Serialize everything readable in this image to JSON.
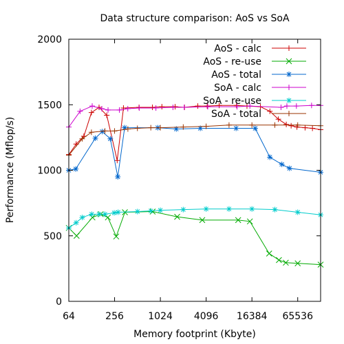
{
  "chart_data": {
    "type": "line",
    "title": "Data structure comparison: AoS vs SoA",
    "xlabel": "Memory footprint (Kbyte)",
    "ylabel": "Performance (Mflop/s)",
    "xscale": "log2",
    "xlim": [
      64,
      131072
    ],
    "ylim": [
      0,
      2000
    ],
    "xticks": [
      64,
      256,
      1024,
      4096,
      16384,
      65536
    ],
    "xtick_labels": [
      "64",
      "256",
      "1024",
      "4096",
      "16384",
      "65536"
    ],
    "yticks": [
      0,
      500,
      1000,
      1500,
      2000
    ],
    "ytick_labels": [
      "0",
      "500",
      "1000",
      "1500",
      "2000"
    ],
    "grid": false,
    "legend_position": "top-right",
    "series": [
      {
        "name": "AoS - calc",
        "color": "#cc0000",
        "marker": "plus",
        "x": [
          64,
          80,
          101,
          127,
          160,
          202,
          277,
          335,
          537,
          805,
          1072,
          1600,
          2126,
          3180,
          4230,
          6080,
          10300,
          14100,
          21170,
          28200,
          36480,
          46350,
          53700,
          64000,
          81900,
          102350,
          131072
        ],
        "y": [
          1120,
          1200,
          1260,
          1440,
          1480,
          1420,
          1075,
          1475,
          1480,
          1480,
          1485,
          1485,
          1480,
          1490,
          1490,
          1495,
          1495,
          1490,
          1485,
          1450,
          1390,
          1350,
          1340,
          1330,
          1325,
          1320,
          1310
        ]
      },
      {
        "name": "AoS - re-use",
        "color": "#00aa00",
        "marker": "x",
        "x": [
          64,
          81,
          131,
          168,
          209,
          269,
          350,
          811,
          1703,
          3640,
          10800,
          15400,
          27600,
          37100,
          45700,
          65500,
          131072
        ],
        "y": [
          560,
          500,
          640,
          665,
          640,
          495,
          680,
          685,
          645,
          620,
          620,
          610,
          365,
          315,
          295,
          290,
          280
        ]
      },
      {
        "name": "AoS - total",
        "color": "#0066cc",
        "marker": "star",
        "x": [
          64,
          79,
          143,
          176,
          225,
          282,
          347,
          946,
          1658,
          3432,
          10150,
          18080,
          28180,
          40500,
          51100,
          131072
        ],
        "y": [
          1000,
          1010,
          1245,
          1295,
          1240,
          950,
          1325,
          1325,
          1315,
          1320,
          1320,
          1320,
          1100,
          1045,
          1015,
          985
        ]
      },
      {
        "name": "SoA - calc",
        "color": "#cc00cc",
        "marker": "plus",
        "x": [
          64,
          90,
          130,
          174,
          210,
          296,
          382,
          540,
          895,
          1500,
          2108,
          4300,
          10430,
          15400,
          39500,
          47200,
          63000,
          99700,
          131072
        ],
        "y": [
          1330,
          1450,
          1490,
          1470,
          1460,
          1460,
          1470,
          1475,
          1475,
          1480,
          1480,
          1485,
          1485,
          1490,
          1480,
          1490,
          1490,
          1495,
          1495
        ]
      },
      {
        "name": "SoA - re-use",
        "color": "#00cccc",
        "marker": "star",
        "x": [
          64,
          80,
          96,
          128,
          160,
          191,
          253,
          285,
          512,
          768,
          1024,
          2048,
          4096,
          8192,
          16384,
          32768,
          65536,
          131072
        ],
        "y": [
          560,
          600,
          640,
          665,
          665,
          665,
          675,
          680,
          685,
          690,
          695,
          700,
          705,
          705,
          705,
          700,
          680,
          660
        ]
      },
      {
        "name": "SoA - total",
        "color": "#993300",
        "marker": "plus",
        "x": [
          64,
          96,
          127,
          191,
          256,
          383,
          511,
          767,
          1023,
          2047,
          4095,
          8191,
          16383,
          32767,
          65535,
          131071
        ],
        "y": [
          1115,
          1240,
          1290,
          1300,
          1300,
          1315,
          1320,
          1325,
          1325,
          1330,
          1335,
          1345,
          1345,
          1345,
          1345,
          1340
        ]
      }
    ]
  }
}
